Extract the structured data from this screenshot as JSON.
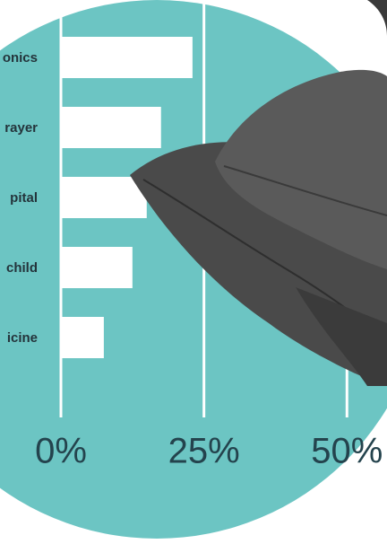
{
  "chart_data": {
    "type": "bar",
    "orientation": "horizontal",
    "categories": [
      "onics",
      "rayer",
      "pital",
      "child",
      "icine"
    ],
    "values": [
      23,
      17.5,
      15,
      12.5,
      7.5
    ],
    "color": "#ffffff",
    "background_color": "#6cc5c3",
    "xlim": [
      0,
      57
    ],
    "xticks": [
      {
        "value": 0,
        "label": "0%"
      },
      {
        "value": 25,
        "label": "25%"
      },
      {
        "value": 50,
        "label": "50%"
      }
    ],
    "grid": true
  }
}
